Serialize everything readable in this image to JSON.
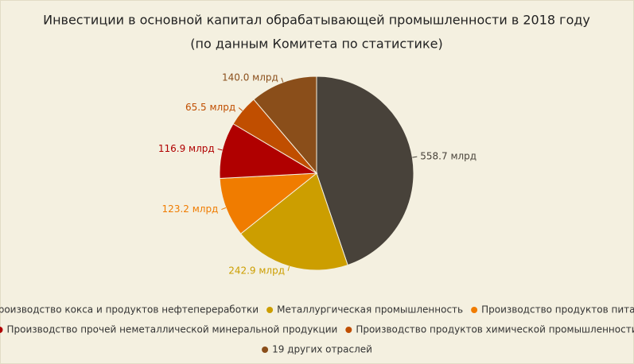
{
  "chart_data": {
    "type": "pie",
    "title": "Инвестиции в основной капитал обрабатывающей промышленности в 2018 году",
    "subtitle": "(по данным Комитета по статистике)",
    "categories": [
      "Производство кокса и продуктов нефтепереработки",
      "Металлургическая промышленность",
      "Производство продуктов питания",
      "Производство прочей неметаллической минеральной продукции",
      "Производство продуктов химической промышленности",
      "19 других отраслей"
    ],
    "values": [
      558.7,
      242.9,
      123.2,
      116.9,
      65.5,
      140.0
    ],
    "value_labels": [
      "558.7 млрд",
      "242.9 млрд",
      "123.2 млрд",
      "116.9 млрд",
      "65.5 млрд",
      "140.0 млрд"
    ],
    "colors": [
      "#48423a",
      "#cc9e00",
      "#f07c00",
      "#b00000",
      "#c04e00",
      "#8a4e1a"
    ],
    "legend": "bottom"
  }
}
